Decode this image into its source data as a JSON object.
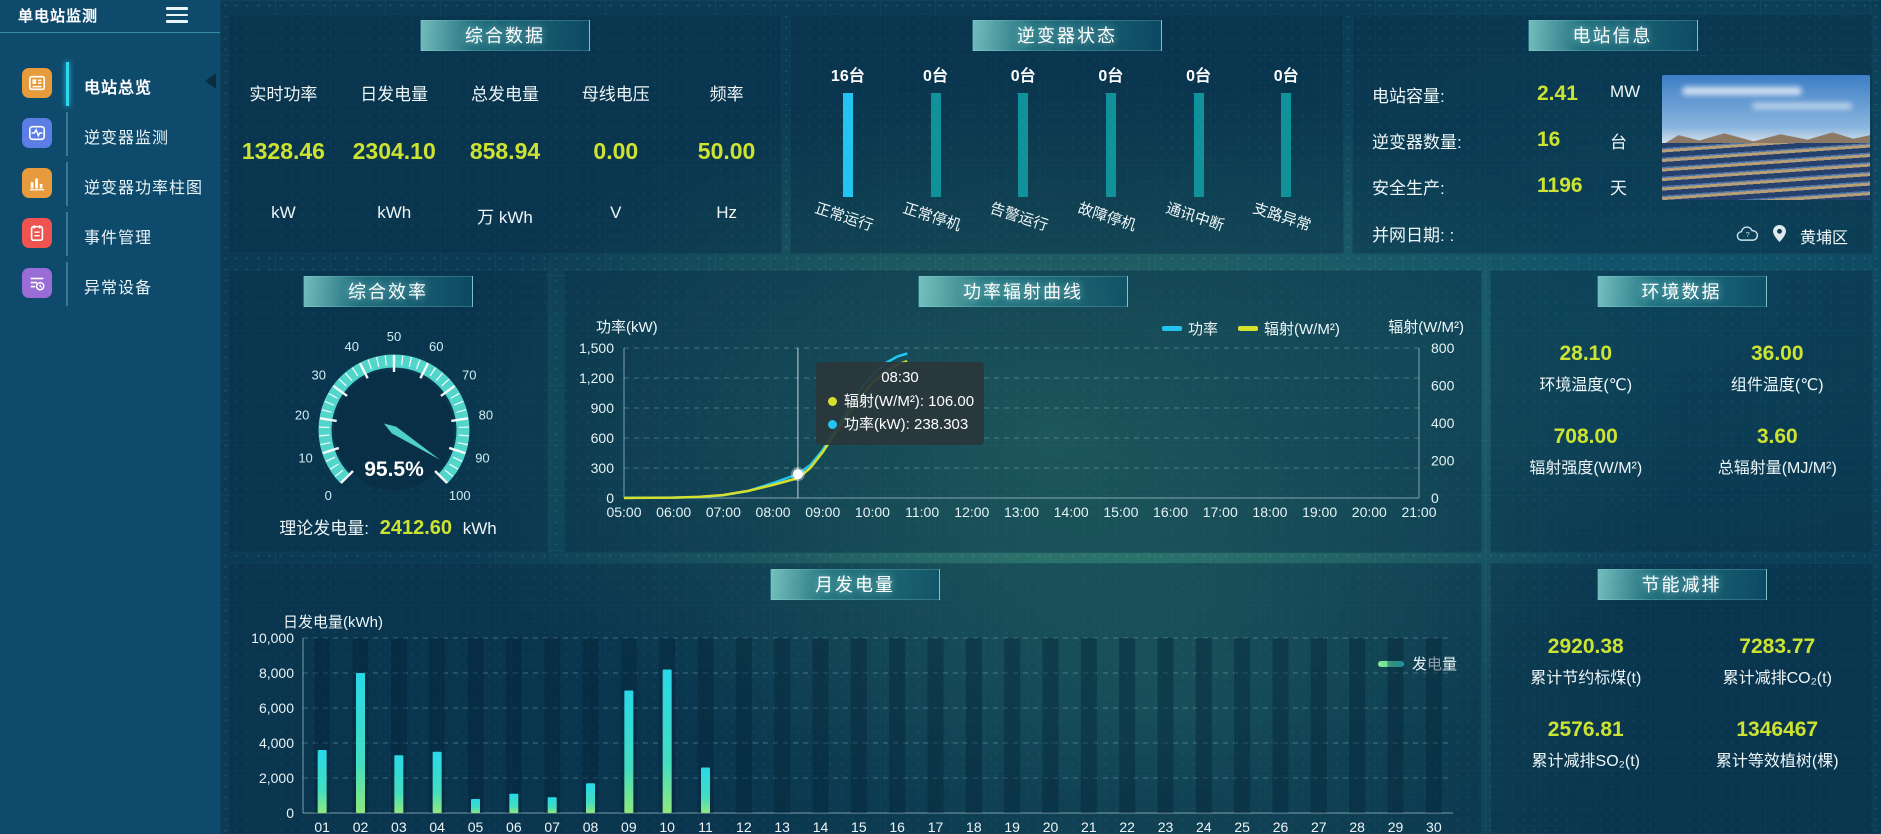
{
  "sidebar": {
    "title": "单电站监测",
    "items": [
      {
        "label": "电站总览",
        "color": "#e79b3c",
        "active": true
      },
      {
        "label": "逆变器监测",
        "color": "#5b7de4",
        "active": false
      },
      {
        "label": "逆变器功率柱图",
        "color": "#e79b3c",
        "active": false
      },
      {
        "label": "事件管理",
        "color": "#ef5350",
        "active": false
      },
      {
        "label": "异常设备",
        "color": "#9a6cd6",
        "active": false
      }
    ]
  },
  "panels": {
    "summary": {
      "title": "综合数据",
      "metrics": [
        {
          "label": "实时功率",
          "value": "1328.46",
          "unit": "kW"
        },
        {
          "label": "日发电量",
          "value": "2304.10",
          "unit": "kWh"
        },
        {
          "label": "总发电量",
          "value": "858.94",
          "unit": "万 kWh"
        },
        {
          "label": "母线电压",
          "value": "0.00",
          "unit": "V"
        },
        {
          "label": "频率",
          "value": "50.00",
          "unit": "Hz"
        }
      ]
    },
    "inverter_status": {
      "title": "逆变器状态",
      "bars": [
        {
          "count": "16台",
          "label": "正常运行",
          "color": "#23c4f0"
        },
        {
          "count": "0台",
          "label": "正常停机",
          "color": "#11929b"
        },
        {
          "count": "0台",
          "label": "告警运行",
          "color": "#11929b"
        },
        {
          "count": "0台",
          "label": "故障停机",
          "color": "#11929b"
        },
        {
          "count": "0台",
          "label": "通讯中断",
          "color": "#11929b"
        },
        {
          "count": "0台",
          "label": "支路异常",
          "color": "#11929b"
        }
      ]
    },
    "station_info": {
      "title": "电站信息",
      "rows": [
        {
          "label": "电站容量:",
          "value": "2.41",
          "unit": "MW"
        },
        {
          "label": "逆变器数量:",
          "value": "16",
          "unit": "台"
        },
        {
          "label": "安全生产:",
          "value": "1196",
          "unit": "天"
        },
        {
          "label": "并网日期: :",
          "value": "",
          "unit": ""
        }
      ],
      "location": "黄埔区"
    },
    "efficiency": {
      "title": "综合效率",
      "theory_label": "理论发电量:",
      "theory_value": "2412.60",
      "theory_unit": "kWh"
    },
    "power_curve": {
      "title": "功率辐射曲线",
      "tooltip": {
        "time": "08:30",
        "entries": [
          {
            "name": "辐射(W/M²)",
            "value": "106.00",
            "color": "#d6df2e"
          },
          {
            "name": "功率(kW)",
            "value": "238.303",
            "color": "#23c4f0"
          }
        ]
      }
    },
    "environment": {
      "title": "环境数据",
      "metrics": [
        {
          "value": "28.10",
          "label": "环境温度(℃)"
        },
        {
          "value": "36.00",
          "label": "组件温度(℃)"
        },
        {
          "value": "708.00",
          "label": "辐射强度(W/M²)"
        },
        {
          "value": "3.60",
          "label": "总辐射量(MJ/M²)"
        }
      ]
    },
    "monthly": {
      "title": "月发电量"
    },
    "energy_saving": {
      "title": "节能减排",
      "metrics": [
        {
          "value": "2920.38",
          "label": "累计节约标煤(t)"
        },
        {
          "value": "7283.77",
          "label": "累计减排CO₂(t)"
        },
        {
          "value": "2576.81",
          "label": "累计减排SO₂(t)"
        },
        {
          "value": "1346467",
          "label": "累计等效植树(棵)"
        }
      ]
    }
  },
  "chart_data": [
    {
      "type": "gauge",
      "title": "综合效率",
      "value": 95.5,
      "display": "95.5%",
      "min": 0,
      "max": 100,
      "major_tick_step": 10,
      "ring_color": "#52d6cc"
    },
    {
      "type": "line",
      "title": "功率辐射曲线",
      "x_labels": [
        "05:00",
        "06:00",
        "07:00",
        "08:00",
        "09:00",
        "10:00",
        "11:00",
        "12:00",
        "13:00",
        "14:00",
        "15:00",
        "16:00",
        "17:00",
        "18:00",
        "19:00",
        "20:00",
        "21:00"
      ],
      "x_range": [
        5,
        21
      ],
      "y_left": {
        "title": "功率(kW)",
        "min": 0,
        "max": 1500,
        "ticks": [
          "0",
          "300",
          "600",
          "900",
          "1,200",
          "1,500"
        ]
      },
      "y_right": {
        "title": "辐射(W/M²)",
        "min": 0,
        "max": 800,
        "ticks": [
          "0",
          "200",
          "400",
          "600",
          "800"
        ]
      },
      "legend": [
        {
          "name": "功率",
          "color": "#23c4f0"
        },
        {
          "name": "辐射(W/M²)",
          "color": "#d6df2e"
        }
      ],
      "series": [
        {
          "name": "功率",
          "axis": "left",
          "color": "#23c4f0",
          "points": [
            [
              5,
              2
            ],
            [
              5.5,
              2
            ],
            [
              6,
              4
            ],
            [
              6.5,
              10
            ],
            [
              7,
              28
            ],
            [
              7.5,
              70
            ],
            [
              8,
              150
            ],
            [
              8.5,
              238.3
            ],
            [
              8.75,
              330
            ],
            [
              9,
              480
            ],
            [
              9.25,
              680
            ],
            [
              9.5,
              880
            ],
            [
              9.75,
              1080
            ],
            [
              10,
              1230
            ],
            [
              10.25,
              1345
            ],
            [
              10.5,
              1415
            ],
            [
              10.7,
              1445
            ]
          ]
        },
        {
          "name": "辐射(W/M²)",
          "axis": "right",
          "color": "#d6df2e",
          "points": [
            [
              5,
              0
            ],
            [
              6,
              2
            ],
            [
              6.5,
              6
            ],
            [
              7,
              16
            ],
            [
              7.5,
              38
            ],
            [
              8,
              70
            ],
            [
              8.5,
              106
            ],
            [
              8.75,
              160
            ],
            [
              9,
              245
            ],
            [
              9.25,
              345
            ],
            [
              9.5,
              445
            ],
            [
              9.75,
              535
            ],
            [
              10,
              615
            ],
            [
              10.25,
              672
            ],
            [
              10.5,
              712
            ],
            [
              10.7,
              730
            ]
          ]
        }
      ],
      "hover": {
        "x": 8.5,
        "time": "08:30",
        "power": 238.303,
        "radiation": 106
      }
    },
    {
      "type": "bar",
      "title": "月发电量",
      "ylabel": "日发电量(kWh)",
      "legend": "发电量",
      "categories": [
        "01",
        "02",
        "03",
        "04",
        "05",
        "06",
        "07",
        "08",
        "09",
        "10",
        "11",
        "12",
        "13",
        "14",
        "15",
        "16",
        "17",
        "18",
        "19",
        "20",
        "21",
        "22",
        "23",
        "24",
        "25",
        "26",
        "27",
        "28",
        "29",
        "30"
      ],
      "values": [
        3600,
        8000,
        3300,
        3500,
        800,
        1100,
        900,
        1700,
        7000,
        8200,
        2600,
        0,
        0,
        0,
        0,
        0,
        0,
        0,
        0,
        0,
        0,
        0,
        0,
        0,
        0,
        0,
        0,
        0,
        0,
        0
      ],
      "ymax": 10000,
      "yticks": [
        "0",
        "2,000",
        "4,000",
        "6,000",
        "8,000",
        "10,000"
      ],
      "bar_color_top": "#28d8e8",
      "bar_color_bottom": "#8fe87d"
    }
  ]
}
